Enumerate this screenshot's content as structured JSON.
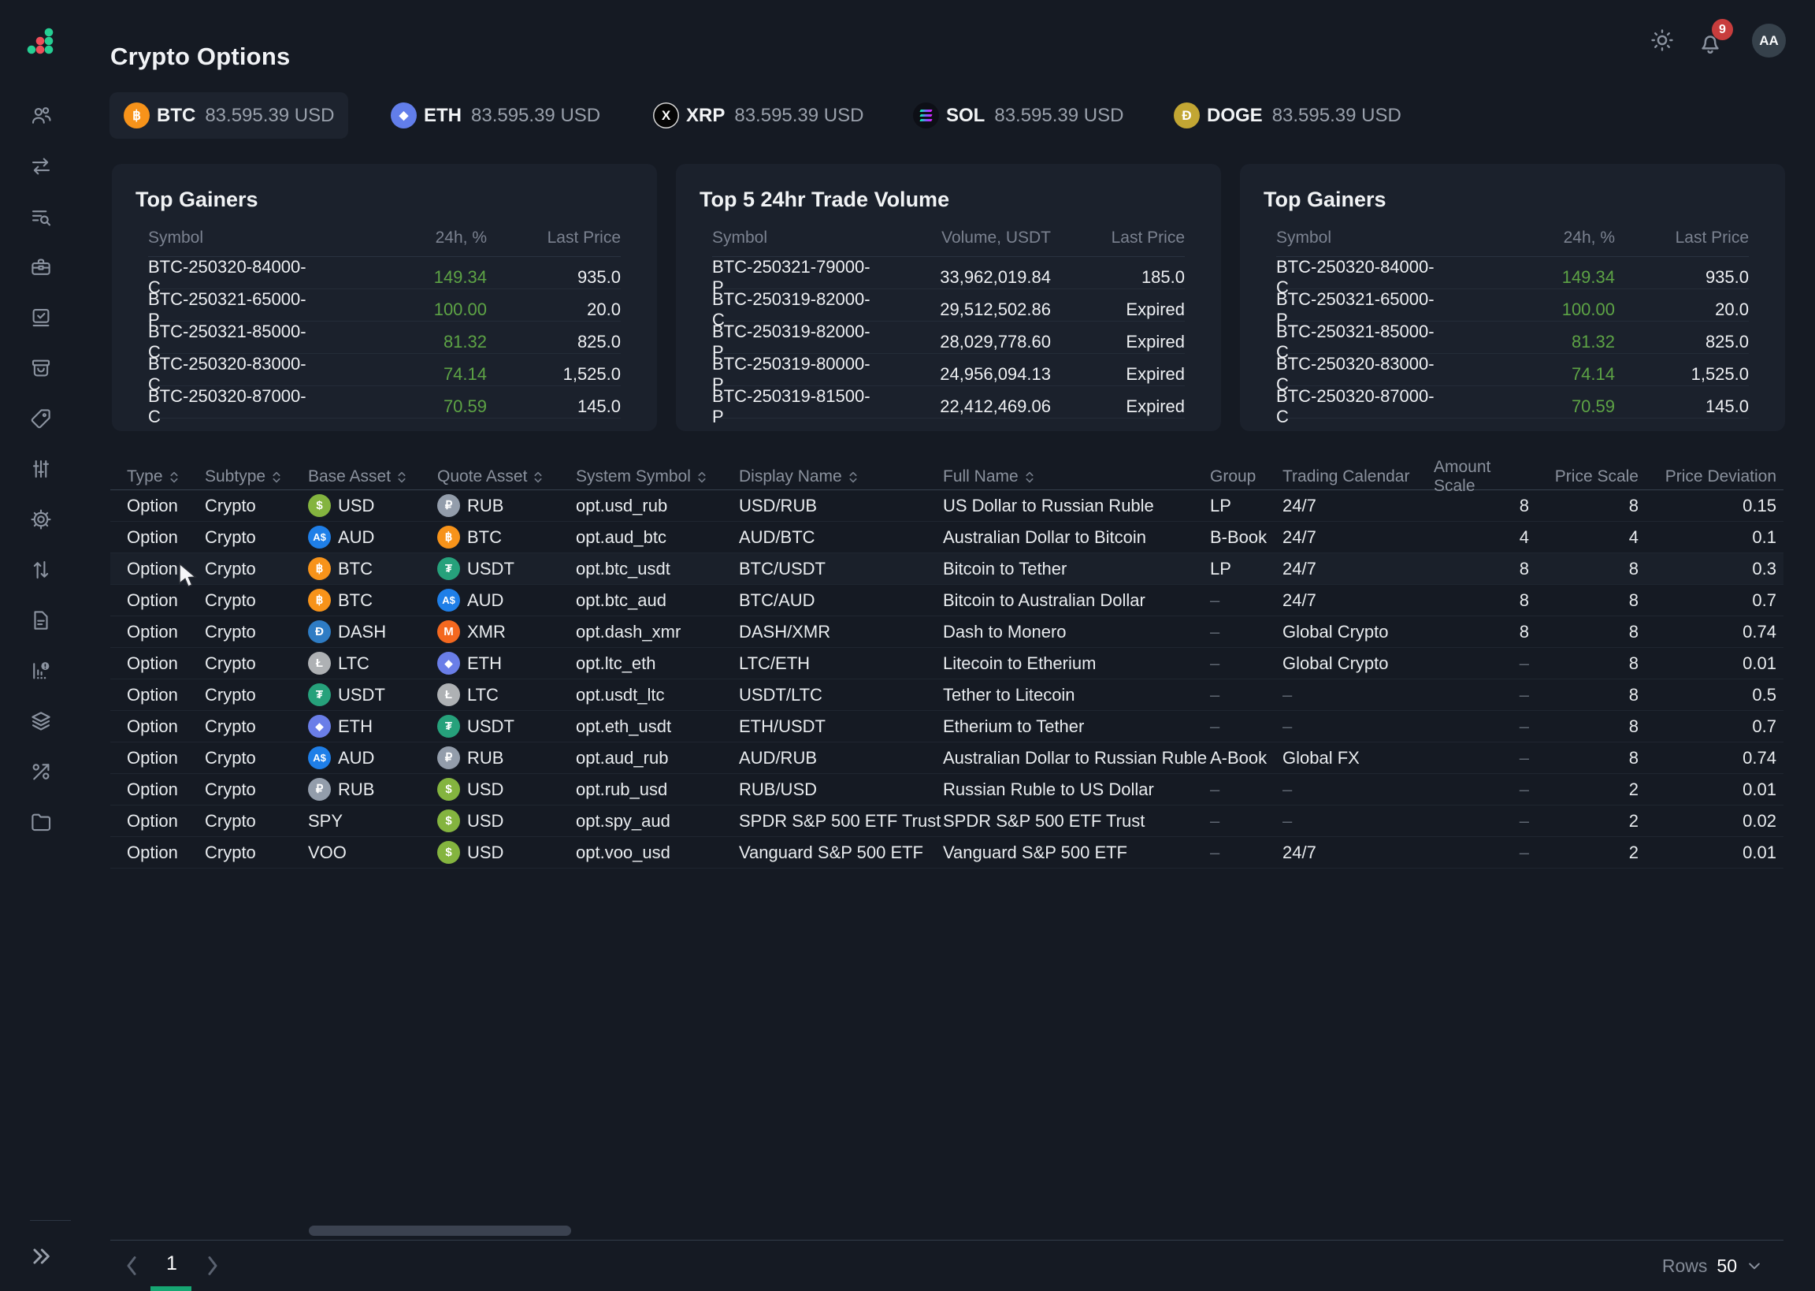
{
  "app": {
    "title": "Crypto Options"
  },
  "topbar": {
    "notification_count": "9",
    "avatar_initials": "AA",
    "icons": [
      "sun-icon",
      "bell-icon",
      "avatar"
    ]
  },
  "colors": {
    "page_bg": "#151a23",
    "card_bg": "#1b212c",
    "green_change": "#5da345",
    "badge_red": "#c83d3d",
    "page_indicator_green": "#17a673",
    "logo_green": "#26ce93",
    "logo_red": "#ee4d5a"
  },
  "tickers": [
    {
      "symbol": "BTC",
      "value": "83.595.39 USD",
      "icon": "btc",
      "selected": true
    },
    {
      "symbol": "ETH",
      "value": "83.595.39 USD",
      "icon": "eth",
      "selected": false
    },
    {
      "symbol": "XRP",
      "value": "83.595.39 USD",
      "icon": "xrp",
      "selected": false
    },
    {
      "symbol": "SOL",
      "value": "83.595.39 USD",
      "icon": "sol",
      "selected": false
    },
    {
      "symbol": "DOGE",
      "value": "83.595.39 USD",
      "icon": "doge",
      "selected": false
    }
  ],
  "ticker_icons": {
    "btc": {
      "bg": "#f7931a",
      "glyph": "฿"
    },
    "eth": {
      "bg": "#627eea",
      "glyph": "◆",
      "small": true
    },
    "xrp": {
      "bg": "#050505",
      "glyph": "X",
      "ring": true
    },
    "sol": {
      "bg": "#0d0f16",
      "bars": true
    },
    "doge": {
      "bg": "#c2a633",
      "glyph": "Ð"
    }
  },
  "asset_icons": {
    "USD": {
      "bg": "#84b43f",
      "glyph": "$"
    },
    "RUB": {
      "bg": "#939dab",
      "glyph": "₽"
    },
    "AUD": {
      "bg": "#1f7fe8",
      "glyph": "A$",
      "small": true
    },
    "BTC": {
      "bg": "#f7931a",
      "glyph": "฿"
    },
    "USDT": {
      "bg": "#26a17b",
      "glyph": "₮"
    },
    "DASH": {
      "bg": "#2e7cc4",
      "glyph": "Đ"
    },
    "XMR": {
      "bg": "#f4681f",
      "glyph": "M"
    },
    "LTC": {
      "bg": "#aeb1b4",
      "glyph": "Ł"
    },
    "ETH": {
      "bg": "#6a7ee8",
      "glyph": "◆",
      "small": true
    }
  },
  "cards": [
    {
      "title": "Top Gainers",
      "columns": [
        "Symbol",
        "24h, %",
        "Last Price"
      ],
      "mid_green": true,
      "rows": [
        [
          "BTC-250320-84000-C",
          "149.34",
          "935.0"
        ],
        [
          "BTC-250321-65000-P",
          "100.00",
          "20.0"
        ],
        [
          "BTC-250321-85000-C",
          "81.32",
          "825.0"
        ],
        [
          "BTC-250320-83000-C",
          "74.14",
          "1,525.0"
        ],
        [
          "BTC-250320-87000-C",
          "70.59",
          "145.0"
        ]
      ]
    },
    {
      "title": "Top 5 24hr Trade Volume",
      "columns": [
        "Symbol",
        "Volume, USDT",
        "Last Price"
      ],
      "mid_green": false,
      "rows": [
        [
          "BTC-250321-79000-P",
          "33,962,019.84",
          "185.0"
        ],
        [
          "BTC-250319-82000-C",
          "29,512,502.86",
          "Expired"
        ],
        [
          "BTC-250319-82000-P",
          "28,029,778.60",
          "Expired"
        ],
        [
          "BTC-250319-80000-P",
          "24,956,094.13",
          "Expired"
        ],
        [
          "BTC-250319-81500-P",
          "22,412,469.06",
          "Expired"
        ]
      ]
    },
    {
      "title": "Top Gainers",
      "columns": [
        "Symbol",
        "24h, %",
        "Last Price"
      ],
      "mid_green": true,
      "rows": [
        [
          "BTC-250320-84000-C",
          "149.34",
          "935.0"
        ],
        [
          "BTC-250321-65000-P",
          "100.00",
          "20.0"
        ],
        [
          "BTC-250321-85000-C",
          "81.32",
          "825.0"
        ],
        [
          "BTC-250320-83000-C",
          "74.14",
          "1,525.0"
        ],
        [
          "BTC-250320-87000-C",
          "70.59",
          "145.0"
        ]
      ]
    }
  ],
  "table": {
    "columns": [
      {
        "label": "Type",
        "sortable": true
      },
      {
        "label": "Subtype",
        "sortable": true
      },
      {
        "label": "Base Asset",
        "sortable": true
      },
      {
        "label": "Quote Asset",
        "sortable": true
      },
      {
        "label": "System Symbol",
        "sortable": true
      },
      {
        "label": "Display Name",
        "sortable": true
      },
      {
        "label": "Full Name",
        "sortable": true
      },
      {
        "label": "Group",
        "sortable": false
      },
      {
        "label": "Trading Calendar",
        "sortable": false
      },
      {
        "label": "Amount Scale",
        "sortable": false,
        "align": "right"
      },
      {
        "label": "Price Scale",
        "sortable": false,
        "align": "right"
      },
      {
        "label": "Price Deviation",
        "sortable": false,
        "align": "right"
      }
    ],
    "rows": [
      {
        "type": "Option",
        "subtype": "Crypto",
        "base": "USD",
        "quote": "RUB",
        "system_symbol": "opt.usd_rub",
        "display_name": "USD/RUB",
        "full_name": "US Dollar to Russian Ruble",
        "group": "LP",
        "trading_calendar": "24/7",
        "amount_scale": "8",
        "price_scale": "8",
        "price_deviation": "0.15"
      },
      {
        "type": "Option",
        "subtype": "Crypto",
        "base": "AUD",
        "quote": "BTC",
        "system_symbol": "opt.aud_btc",
        "display_name": "AUD/BTC",
        "full_name": "Australian Dollar to Bitcoin",
        "group": "B-Book",
        "trading_calendar": "24/7",
        "amount_scale": "4",
        "price_scale": "4",
        "price_deviation": "0.1"
      },
      {
        "type": "Option",
        "subtype": "Crypto",
        "base": "BTC",
        "quote": "USDT",
        "system_symbol": "opt.btc_usdt",
        "display_name": "BTC/USDT",
        "full_name": "Bitcoin to Tether",
        "group": "LP",
        "trading_calendar": "24/7",
        "amount_scale": "8",
        "price_scale": "8",
        "price_deviation": "0.3",
        "hovered": true
      },
      {
        "type": "Option",
        "subtype": "Crypto",
        "base": "BTC",
        "quote": "AUD",
        "system_symbol": "opt.btc_aud",
        "display_name": "BTC/AUD",
        "full_name": "Bitcoin to Australian Dollar",
        "group": "–",
        "trading_calendar": "24/7",
        "amount_scale": "8",
        "price_scale": "8",
        "price_deviation": "0.7"
      },
      {
        "type": "Option",
        "subtype": "Crypto",
        "base": "DASH",
        "quote": "XMR",
        "system_symbol": "opt.dash_xmr",
        "display_name": "DASH/XMR",
        "full_name": "Dash to Monero",
        "group": "–",
        "trading_calendar": "Global Crypto",
        "amount_scale": "8",
        "price_scale": "8",
        "price_deviation": "0.74"
      },
      {
        "type": "Option",
        "subtype": "Crypto",
        "base": "LTC",
        "quote": "ETH",
        "system_symbol": "opt.ltc_eth",
        "display_name": "LTC/ETH",
        "full_name": "Litecoin to Etherium",
        "group": "–",
        "trading_calendar": "Global Crypto",
        "amount_scale": "–",
        "price_scale": "8",
        "price_deviation": "0.01"
      },
      {
        "type": "Option",
        "subtype": "Crypto",
        "base": "USDT",
        "quote": "LTC",
        "system_symbol": "opt.usdt_ltc",
        "display_name": "USDT/LTC",
        "full_name": "Tether to Litecoin",
        "group": "–",
        "trading_calendar": "–",
        "amount_scale": "–",
        "price_scale": "8",
        "price_deviation": "0.5"
      },
      {
        "type": "Option",
        "subtype": "Crypto",
        "base": "ETH",
        "quote": "USDT",
        "system_symbol": "opt.eth_usdt",
        "display_name": "ETH/USDT",
        "full_name": "Etherium to Tether",
        "group": "–",
        "trading_calendar": "–",
        "amount_scale": "–",
        "price_scale": "8",
        "price_deviation": "0.7"
      },
      {
        "type": "Option",
        "subtype": "Crypto",
        "base": "AUD",
        "quote": "RUB",
        "system_symbol": "opt.aud_rub",
        "display_name": "AUD/RUB",
        "full_name": "Australian Dollar to Russian Ruble",
        "group": "A-Book",
        "trading_calendar": "Global FX",
        "amount_scale": "–",
        "price_scale": "8",
        "price_deviation": "0.74"
      },
      {
        "type": "Option",
        "subtype": "Crypto",
        "base": "RUB",
        "quote": "USD",
        "system_symbol": "opt.rub_usd",
        "display_name": "RUB/USD",
        "full_name": "Russian Ruble to US Dollar",
        "group": "–",
        "trading_calendar": "–",
        "amount_scale": "–",
        "price_scale": "2",
        "price_deviation": "0.01"
      },
      {
        "type": "Option",
        "subtype": "Crypto",
        "base": "SPY",
        "quote": "USD",
        "system_symbol": "opt.spy_aud",
        "display_name": "SPDR S&P 500 ETF Trust",
        "full_name": "SPDR S&P 500 ETF Trust",
        "group": "–",
        "trading_calendar": "–",
        "amount_scale": "–",
        "price_scale": "2",
        "price_deviation": "0.02"
      },
      {
        "type": "Option",
        "subtype": "Crypto",
        "base": "VOO",
        "quote": "USD",
        "system_symbol": "opt.voo_usd",
        "display_name": "Vanguard S&P 500 ETF",
        "full_name": "Vanguard S&P 500 ETF",
        "group": "–",
        "trading_calendar": "24/7",
        "amount_scale": "–",
        "price_scale": "2",
        "price_deviation": "0.01"
      }
    ]
  },
  "sidebar": {
    "items": [
      "users",
      "transfers",
      "order-search",
      "portfolio",
      "tasks",
      "archive",
      "tags",
      "adjustments",
      "settings",
      "sorting",
      "documents",
      "reports-alert",
      "layers",
      "rates",
      "files"
    ],
    "collapse_label": "collapse-sidebar"
  },
  "pagination": {
    "page": "1",
    "rows_label": "Rows",
    "rows_value": "50"
  }
}
